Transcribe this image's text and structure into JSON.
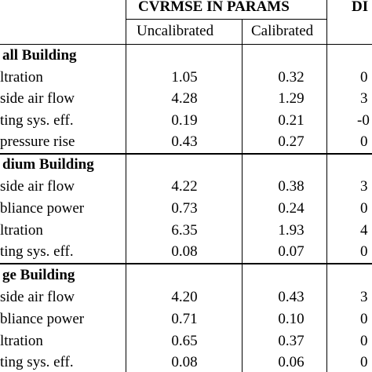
{
  "header": {
    "group_title": "CVRMSE IN PARAMS",
    "col_uncal": "Uncalibrated",
    "col_cal": "Calibrated",
    "cut_col_title": "DI"
  },
  "sections": [
    {
      "title": "all Building",
      "rows": [
        {
          "label": "ltration",
          "uncal": "1.05",
          "cal": "0.32",
          "cut": "0"
        },
        {
          "label": "side air flow",
          "uncal": "4.28",
          "cal": "1.29",
          "cut": "3"
        },
        {
          "label": "ting sys. eff.",
          "uncal": "0.19",
          "cal": "0.21",
          "cut": "-0"
        },
        {
          "label": "pressure rise",
          "uncal": "0.43",
          "cal": "0.27",
          "cut": "0"
        }
      ]
    },
    {
      "title": "dium Building",
      "rows": [
        {
          "label": "side air flow",
          "uncal": "4.22",
          "cal": "0.38",
          "cut": "3"
        },
        {
          "label": "bliance power",
          "uncal": "0.73",
          "cal": "0.24",
          "cut": "0"
        },
        {
          "label": "ltration",
          "uncal": "6.35",
          "cal": "1.93",
          "cut": "4"
        },
        {
          "label": "ting sys. eff.",
          "uncal": "0.08",
          "cal": "0.07",
          "cut": "0"
        }
      ]
    },
    {
      "title": "ge Building",
      "rows": [
        {
          "label": "side air flow",
          "uncal": "4.20",
          "cal": "0.43",
          "cut": "3"
        },
        {
          "label": "bliance power",
          "uncal": "0.71",
          "cal": "0.10",
          "cut": "0"
        },
        {
          "label": "ltration",
          "uncal": "0.65",
          "cal": "0.37",
          "cut": "0"
        },
        {
          "label": "ting sys. eff.",
          "uncal": "0.08",
          "cal": "0.06",
          "cut": "0"
        }
      ]
    }
  ]
}
